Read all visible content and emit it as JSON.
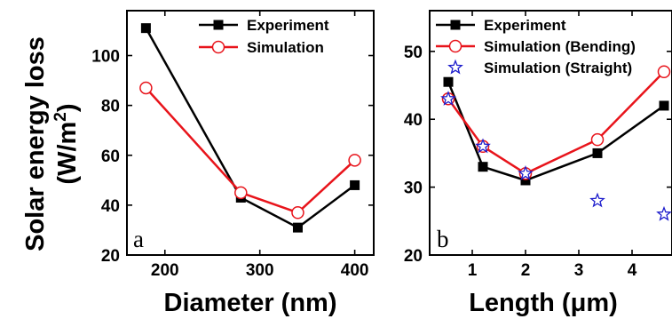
{
  "ylabel_line1": "Solar energy loss",
  "ylabel_line2_prefix": "(W/m",
  "ylabel_line2_sup": "2",
  "ylabel_line2_suffix": ")",
  "colors": {
    "experiment": "#000000",
    "simulation": "#e8141b",
    "straight": "#1c1ccc"
  },
  "chart_data": [
    {
      "type": "line",
      "panel_letter": "a",
      "xlabel": "Diameter (nm)",
      "ylabel": "Solar energy loss (W/m2)",
      "xlim": [
        160,
        420
      ],
      "ylim": [
        20,
        118
      ],
      "xticks": [
        200,
        300,
        400
      ],
      "yticks": [
        20,
        40,
        60,
        80,
        100
      ],
      "grid": false,
      "legend_position": "top-right",
      "series": [
        {
          "name": "Experiment",
          "marker": "filled-square",
          "color": "#000000",
          "x": [
            180,
            280,
            340,
            400
          ],
          "y": [
            111,
            43,
            31,
            48
          ]
        },
        {
          "name": "Simulation",
          "marker": "open-circle",
          "color": "#e8141b",
          "x": [
            180,
            280,
            340,
            400
          ],
          "y": [
            87,
            45,
            37,
            58
          ]
        }
      ]
    },
    {
      "type": "line",
      "panel_letter": "b",
      "xlabel": "Length (μm)",
      "ylabel": "Solar energy loss (W/m2)",
      "xlim": [
        0.2,
        4.75
      ],
      "ylim": [
        20,
        56
      ],
      "xticks": [
        1,
        2,
        3,
        4
      ],
      "yticks": [
        20,
        30,
        40,
        50
      ],
      "grid": false,
      "legend_position": "top",
      "series": [
        {
          "name": "Experiment",
          "marker": "filled-square",
          "color": "#000000",
          "line": true,
          "x": [
            0.55,
            1.2,
            2.0,
            3.35,
            4.6
          ],
          "y": [
            45.5,
            33,
            31,
            35,
            42
          ]
        },
        {
          "name": "Simulation (Bending)",
          "marker": "open-circle",
          "color": "#e8141b",
          "line": true,
          "x": [
            0.55,
            1.2,
            2.0,
            3.35,
            4.6
          ],
          "y": [
            43,
            36,
            32,
            37,
            47
          ]
        },
        {
          "name": "Simulation (Straight)",
          "marker": "open-star",
          "color": "#1c1ccc",
          "line": false,
          "x": [
            0.55,
            1.2,
            2.0,
            3.35,
            4.6
          ],
          "y": [
            43,
            36,
            32,
            28,
            26
          ]
        }
      ]
    }
  ]
}
